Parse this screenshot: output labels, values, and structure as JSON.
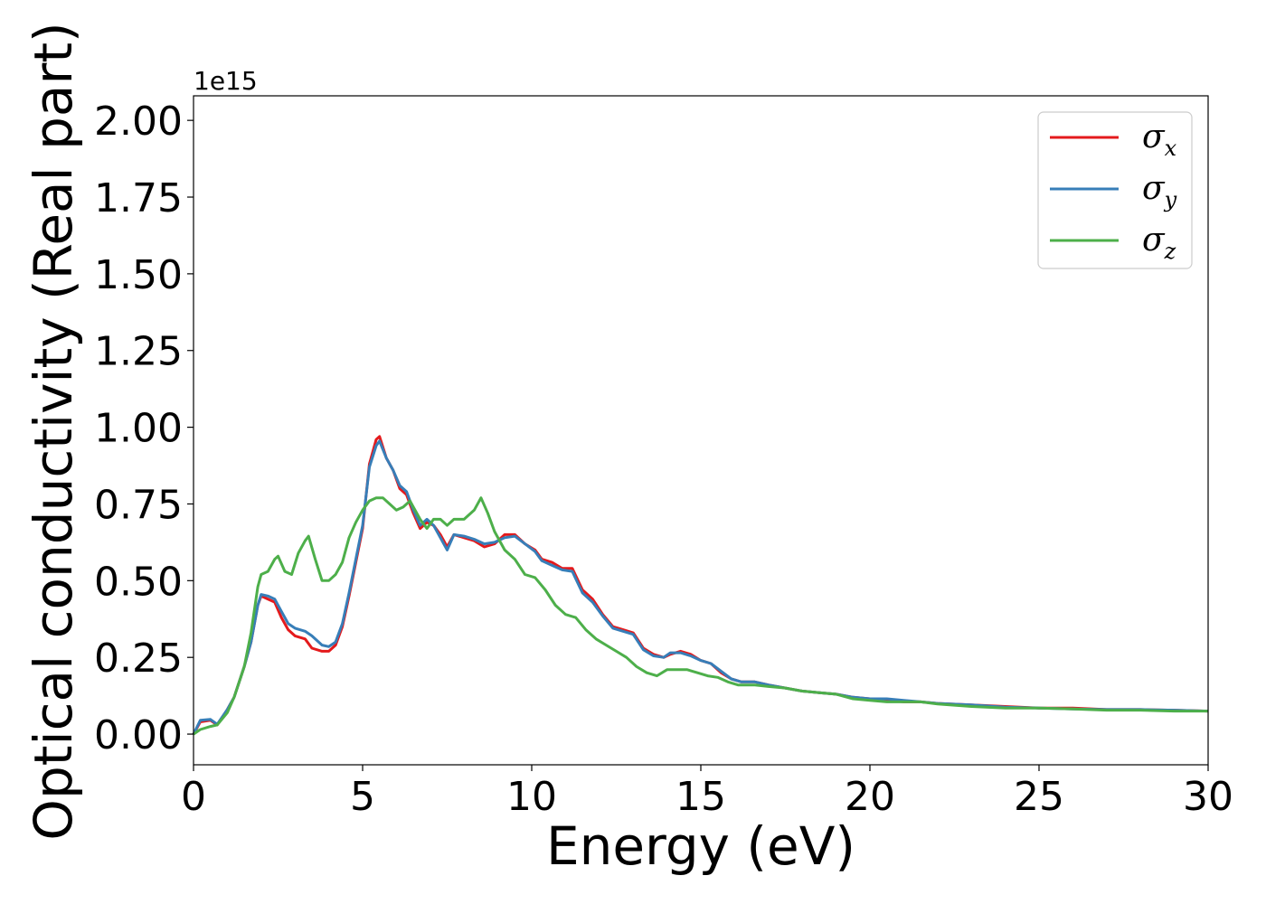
{
  "chart_data": {
    "type": "line",
    "title": "",
    "xlabel": "Energy (eV)",
    "ylabel": "Optical conductivity (Real part)",
    "y_offset_text": "1e15",
    "xlim": [
      0,
      30
    ],
    "ylim": [
      -0.1,
      2.08
    ],
    "x_ticks": [
      0,
      5,
      10,
      15,
      20,
      25,
      30
    ],
    "x_tick_labels": [
      "0",
      "5",
      "10",
      "15",
      "20",
      "25",
      "30"
    ],
    "y_ticks": [
      0.0,
      0.25,
      0.5,
      0.75,
      1.0,
      1.25,
      1.5,
      1.75,
      2.0
    ],
    "y_tick_labels": [
      "0.00",
      "0.25",
      "0.50",
      "0.75",
      "1.00",
      "1.25",
      "1.50",
      "1.75",
      "2.00"
    ],
    "grid": false,
    "legend_position": "top-right",
    "series": [
      {
        "name": "σx",
        "legend_symbol": "σ",
        "legend_subscript": "x",
        "color": "#e41a1c",
        "points": [
          [
            0,
            0.0
          ],
          [
            0.2,
            0.04
          ],
          [
            0.5,
            0.045
          ],
          [
            0.7,
            0.03
          ],
          [
            1.0,
            0.08
          ],
          [
            1.2,
            0.12
          ],
          [
            1.5,
            0.22
          ],
          [
            1.7,
            0.3
          ],
          [
            1.9,
            0.42
          ],
          [
            2.0,
            0.45
          ],
          [
            2.2,
            0.44
          ],
          [
            2.4,
            0.43
          ],
          [
            2.6,
            0.38
          ],
          [
            2.8,
            0.34
          ],
          [
            3.0,
            0.32
          ],
          [
            3.3,
            0.31
          ],
          [
            3.5,
            0.28
          ],
          [
            3.8,
            0.27
          ],
          [
            4.0,
            0.27
          ],
          [
            4.2,
            0.29
          ],
          [
            4.4,
            0.35
          ],
          [
            4.6,
            0.45
          ],
          [
            4.8,
            0.56
          ],
          [
            5.0,
            0.67
          ],
          [
            5.2,
            0.88
          ],
          [
            5.4,
            0.96
          ],
          [
            5.5,
            0.97
          ],
          [
            5.7,
            0.9
          ],
          [
            5.9,
            0.86
          ],
          [
            6.1,
            0.8
          ],
          [
            6.3,
            0.78
          ],
          [
            6.5,
            0.72
          ],
          [
            6.7,
            0.67
          ],
          [
            6.9,
            0.69
          ],
          [
            7.1,
            0.68
          ],
          [
            7.3,
            0.65
          ],
          [
            7.5,
            0.61
          ],
          [
            7.7,
            0.65
          ],
          [
            8.0,
            0.64
          ],
          [
            8.3,
            0.63
          ],
          [
            8.6,
            0.61
          ],
          [
            8.9,
            0.62
          ],
          [
            9.2,
            0.65
          ],
          [
            9.5,
            0.65
          ],
          [
            9.8,
            0.62
          ],
          [
            10.1,
            0.6
          ],
          [
            10.3,
            0.57
          ],
          [
            10.6,
            0.56
          ],
          [
            10.9,
            0.54
          ],
          [
            11.2,
            0.54
          ],
          [
            11.5,
            0.47
          ],
          [
            11.8,
            0.44
          ],
          [
            12.1,
            0.39
          ],
          [
            12.4,
            0.35
          ],
          [
            12.7,
            0.34
          ],
          [
            13.0,
            0.33
          ],
          [
            13.3,
            0.28
          ],
          [
            13.6,
            0.26
          ],
          [
            13.9,
            0.25
          ],
          [
            14.1,
            0.26
          ],
          [
            14.4,
            0.27
          ],
          [
            14.7,
            0.26
          ],
          [
            15.0,
            0.24
          ],
          [
            15.3,
            0.23
          ],
          [
            15.6,
            0.2
          ],
          [
            15.9,
            0.18
          ],
          [
            16.2,
            0.17
          ],
          [
            16.6,
            0.17
          ],
          [
            17.0,
            0.16
          ],
          [
            17.5,
            0.15
          ],
          [
            18.0,
            0.14
          ],
          [
            18.5,
            0.135
          ],
          [
            19.0,
            0.13
          ],
          [
            19.5,
            0.12
          ],
          [
            20.0,
            0.115
          ],
          [
            20.5,
            0.11
          ],
          [
            21.0,
            0.105
          ],
          [
            21.5,
            0.105
          ],
          [
            22.0,
            0.1
          ],
          [
            23.0,
            0.095
          ],
          [
            24.0,
            0.09
          ],
          [
            25.0,
            0.085
          ],
          [
            26.0,
            0.085
          ],
          [
            27.0,
            0.08
          ],
          [
            28.0,
            0.08
          ],
          [
            29.0,
            0.078
          ],
          [
            30.0,
            0.075
          ]
        ]
      },
      {
        "name": "σy",
        "legend_symbol": "σ",
        "legend_subscript": "y",
        "color": "#377eb8",
        "points": [
          [
            0,
            0.0
          ],
          [
            0.2,
            0.045
          ],
          [
            0.5,
            0.048
          ],
          [
            0.7,
            0.032
          ],
          [
            1.0,
            0.08
          ],
          [
            1.2,
            0.12
          ],
          [
            1.5,
            0.22
          ],
          [
            1.7,
            0.3
          ],
          [
            1.9,
            0.42
          ],
          [
            2.0,
            0.455
          ],
          [
            2.2,
            0.45
          ],
          [
            2.4,
            0.44
          ],
          [
            2.6,
            0.4
          ],
          [
            2.8,
            0.36
          ],
          [
            3.0,
            0.345
          ],
          [
            3.3,
            0.335
          ],
          [
            3.5,
            0.32
          ],
          [
            3.8,
            0.29
          ],
          [
            4.0,
            0.285
          ],
          [
            4.2,
            0.3
          ],
          [
            4.4,
            0.36
          ],
          [
            4.6,
            0.46
          ],
          [
            4.8,
            0.57
          ],
          [
            5.0,
            0.68
          ],
          [
            5.2,
            0.87
          ],
          [
            5.4,
            0.94
          ],
          [
            5.5,
            0.955
          ],
          [
            5.7,
            0.9
          ],
          [
            5.9,
            0.86
          ],
          [
            6.1,
            0.81
          ],
          [
            6.3,
            0.79
          ],
          [
            6.5,
            0.73
          ],
          [
            6.7,
            0.68
          ],
          [
            6.9,
            0.7
          ],
          [
            7.1,
            0.68
          ],
          [
            7.3,
            0.64
          ],
          [
            7.5,
            0.6
          ],
          [
            7.7,
            0.65
          ],
          [
            8.0,
            0.645
          ],
          [
            8.3,
            0.635
          ],
          [
            8.6,
            0.62
          ],
          [
            8.9,
            0.625
          ],
          [
            9.2,
            0.64
          ],
          [
            9.5,
            0.645
          ],
          [
            9.8,
            0.62
          ],
          [
            10.1,
            0.595
          ],
          [
            10.3,
            0.565
          ],
          [
            10.6,
            0.55
          ],
          [
            10.9,
            0.535
          ],
          [
            11.2,
            0.53
          ],
          [
            11.5,
            0.46
          ],
          [
            11.8,
            0.43
          ],
          [
            12.1,
            0.385
          ],
          [
            12.4,
            0.345
          ],
          [
            12.7,
            0.335
          ],
          [
            13.0,
            0.325
          ],
          [
            13.3,
            0.275
          ],
          [
            13.6,
            0.255
          ],
          [
            13.9,
            0.25
          ],
          [
            14.1,
            0.265
          ],
          [
            14.4,
            0.265
          ],
          [
            14.7,
            0.255
          ],
          [
            15.0,
            0.24
          ],
          [
            15.3,
            0.23
          ],
          [
            15.6,
            0.205
          ],
          [
            15.9,
            0.18
          ],
          [
            16.2,
            0.17
          ],
          [
            16.6,
            0.17
          ],
          [
            17.0,
            0.16
          ],
          [
            17.5,
            0.15
          ],
          [
            18.0,
            0.14
          ],
          [
            18.5,
            0.135
          ],
          [
            19.0,
            0.13
          ],
          [
            19.5,
            0.12
          ],
          [
            20.0,
            0.115
          ],
          [
            20.5,
            0.115
          ],
          [
            21.0,
            0.11
          ],
          [
            21.5,
            0.105
          ],
          [
            22.0,
            0.1
          ],
          [
            23.0,
            0.095
          ],
          [
            24.0,
            0.088
          ],
          [
            25.0,
            0.085
          ],
          [
            26.0,
            0.082
          ],
          [
            27.0,
            0.08
          ],
          [
            28.0,
            0.08
          ],
          [
            29.0,
            0.078
          ],
          [
            30.0,
            0.075
          ]
        ]
      },
      {
        "name": "σz",
        "legend_symbol": "σ",
        "legend_subscript": "z",
        "color": "#4daf4a",
        "points": [
          [
            0,
            0.0
          ],
          [
            0.2,
            0.015
          ],
          [
            0.5,
            0.025
          ],
          [
            0.7,
            0.03
          ],
          [
            1.0,
            0.07
          ],
          [
            1.2,
            0.12
          ],
          [
            1.5,
            0.22
          ],
          [
            1.7,
            0.33
          ],
          [
            1.9,
            0.48
          ],
          [
            2.0,
            0.52
          ],
          [
            2.2,
            0.53
          ],
          [
            2.4,
            0.57
          ],
          [
            2.5,
            0.58
          ],
          [
            2.7,
            0.53
          ],
          [
            2.9,
            0.52
          ],
          [
            3.1,
            0.59
          ],
          [
            3.3,
            0.63
          ],
          [
            3.4,
            0.645
          ],
          [
            3.6,
            0.57
          ],
          [
            3.8,
            0.5
          ],
          [
            4.0,
            0.5
          ],
          [
            4.2,
            0.52
          ],
          [
            4.4,
            0.56
          ],
          [
            4.6,
            0.64
          ],
          [
            4.8,
            0.69
          ],
          [
            5.0,
            0.73
          ],
          [
            5.2,
            0.76
          ],
          [
            5.4,
            0.77
          ],
          [
            5.6,
            0.77
          ],
          [
            5.8,
            0.75
          ],
          [
            6.0,
            0.73
          ],
          [
            6.2,
            0.74
          ],
          [
            6.4,
            0.76
          ],
          [
            6.5,
            0.74
          ],
          [
            6.7,
            0.7
          ],
          [
            6.9,
            0.67
          ],
          [
            7.1,
            0.7
          ],
          [
            7.3,
            0.7
          ],
          [
            7.5,
            0.68
          ],
          [
            7.7,
            0.7
          ],
          [
            8.0,
            0.7
          ],
          [
            8.3,
            0.73
          ],
          [
            8.5,
            0.77
          ],
          [
            8.7,
            0.72
          ],
          [
            8.9,
            0.66
          ],
          [
            9.2,
            0.6
          ],
          [
            9.5,
            0.57
          ],
          [
            9.8,
            0.52
          ],
          [
            10.1,
            0.51
          ],
          [
            10.4,
            0.47
          ],
          [
            10.7,
            0.42
          ],
          [
            11.0,
            0.39
          ],
          [
            11.3,
            0.38
          ],
          [
            11.6,
            0.34
          ],
          [
            11.9,
            0.31
          ],
          [
            12.2,
            0.29
          ],
          [
            12.5,
            0.27
          ],
          [
            12.8,
            0.25
          ],
          [
            13.1,
            0.22
          ],
          [
            13.4,
            0.2
          ],
          [
            13.7,
            0.19
          ],
          [
            14.0,
            0.21
          ],
          [
            14.3,
            0.21
          ],
          [
            14.6,
            0.21
          ],
          [
            14.9,
            0.2
          ],
          [
            15.2,
            0.19
          ],
          [
            15.5,
            0.185
          ],
          [
            15.8,
            0.17
          ],
          [
            16.1,
            0.16
          ],
          [
            16.6,
            0.16
          ],
          [
            17.0,
            0.155
          ],
          [
            17.5,
            0.15
          ],
          [
            18.0,
            0.14
          ],
          [
            18.5,
            0.135
          ],
          [
            19.0,
            0.13
          ],
          [
            19.5,
            0.115
          ],
          [
            20.0,
            0.11
          ],
          [
            20.5,
            0.105
          ],
          [
            21.0,
            0.105
          ],
          [
            21.5,
            0.105
          ],
          [
            22.0,
            0.098
          ],
          [
            23.0,
            0.09
          ],
          [
            24.0,
            0.085
          ],
          [
            25.0,
            0.085
          ],
          [
            26.0,
            0.082
          ],
          [
            27.0,
            0.078
          ],
          [
            28.0,
            0.078
          ],
          [
            29.0,
            0.075
          ],
          [
            30.0,
            0.075
          ]
        ]
      }
    ]
  }
}
